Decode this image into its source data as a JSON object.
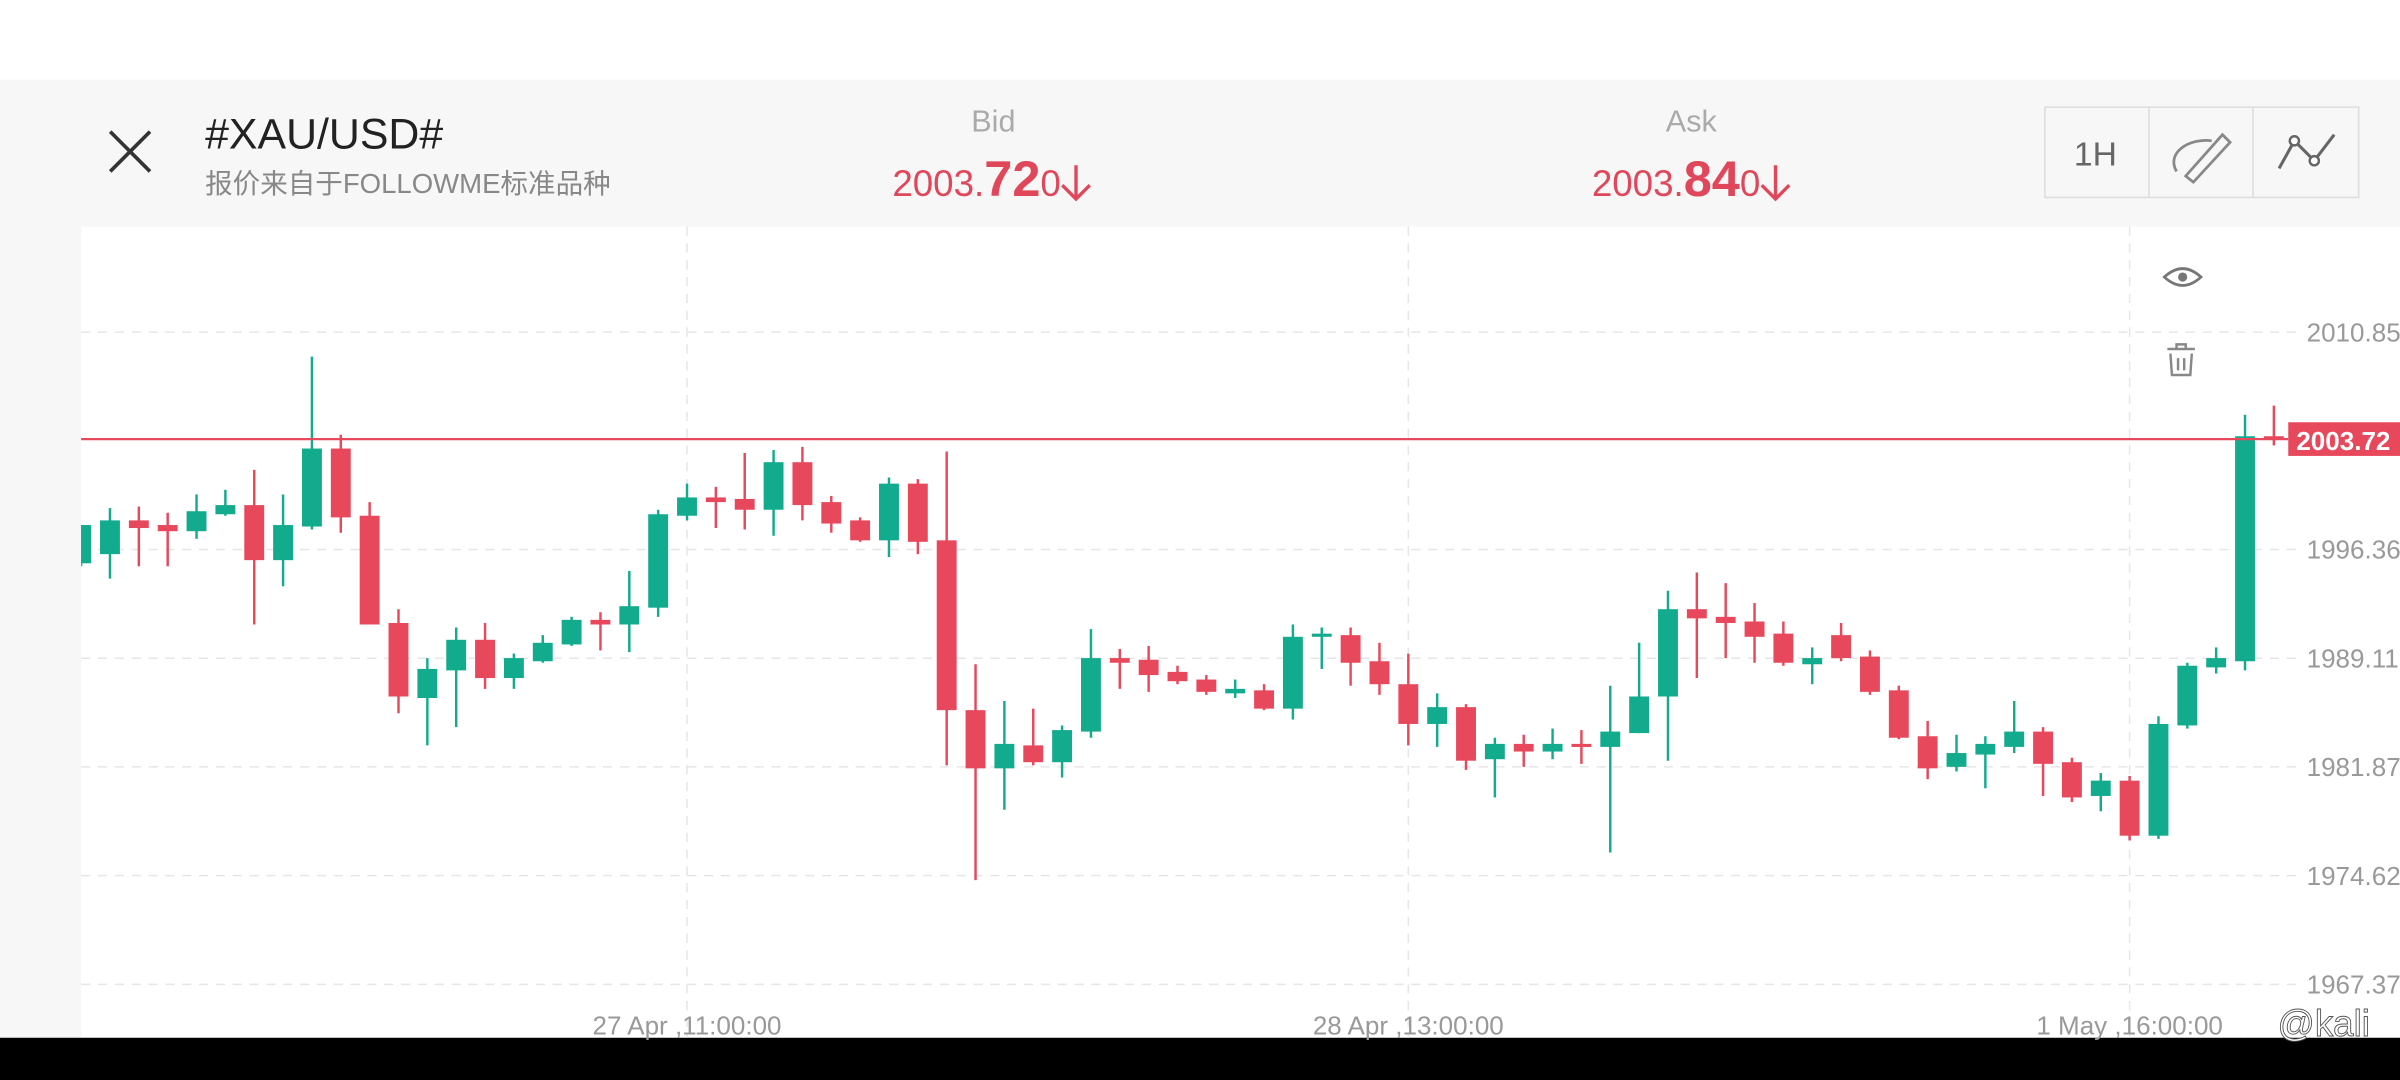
{
  "header": {
    "symbol": "#XAU/USD#",
    "source": "报价来自于FOLLOWME标准品种",
    "bid": {
      "label": "Bid",
      "parts": [
        "2003.",
        "72",
        "0"
      ]
    },
    "ask": {
      "label": "Ask",
      "parts": [
        "2003.",
        "84",
        "0"
      ]
    },
    "timeframe": "1H"
  },
  "chart_data": {
    "type": "candlestick",
    "categories": [
      null,
      null,
      null,
      null,
      null,
      null,
      null,
      null,
      null,
      null,
      null,
      null,
      null,
      null,
      null,
      null,
      null,
      null,
      null,
      null,
      null,
      "27 Apr ,11:00:00",
      null,
      null,
      null,
      null,
      null,
      null,
      null,
      null,
      null,
      null,
      null,
      null,
      null,
      null,
      null,
      null,
      null,
      null,
      null,
      null,
      null,
      null,
      null,
      null,
      "28 Apr ,13:00:00",
      null,
      null,
      null,
      null,
      null,
      null,
      null,
      null,
      null,
      null,
      null,
      null,
      null,
      null,
      null,
      null,
      null,
      null,
      null,
      null,
      null,
      null,
      null,
      null,
      "1 May ,16:00:00",
      null,
      null,
      null,
      null,
      null
    ],
    "open": [
      1995.44,
      1996.05,
      1998.3,
      1997.99,
      1997.58,
      1998.71,
      1999.32,
      1995.65,
      1997.89,
      2003.09,
      1998.61,
      1991.46,
      1986.46,
      1988.3,
      1990.34,
      1987.79,
      1988.91,
      1990.03,
      1991.67,
      1991.36,
      1992.48,
      1998.61,
      1999.83,
      1999.73,
      1999.01,
      2002.18,
      1999.52,
      1998.3,
      1996.97,
      2000.75,
      1996.97,
      1985.65,
      1981.77,
      1983.3,
      1982.18,
      1984.22,
      1989.12,
      1989.01,
      1988.2,
      1987.69,
      1986.77,
      1986.97,
      1985.75,
      1990.54,
      1990.65,
      1988.91,
      1987.38,
      1984.73,
      1985.85,
      1982.38,
      1983.4,
      1982.89,
      1983.4,
      1983.2,
      1984.12,
      1986.56,
      1992.38,
      1991.87,
      1991.56,
      1990.75,
      1988.71,
      1990.65,
      1989.22,
      1986.97,
      1983.91,
      1981.87,
      1982.69,
      1983.2,
      1984.22,
      1982.18,
      1979.93,
      1980.95,
      1977.28,
      1984.63,
      1988.5,
      1988.91,
      2003.91
    ],
    "high": [
      1997.99,
      1999.12,
      1999.22,
      1998.81,
      2000.03,
      2000.34,
      2001.67,
      2000.03,
      2009.22,
      2004.01,
      1999.52,
      1992.38,
      1989.12,
      1991.16,
      1991.46,
      1989.42,
      1990.65,
      1991.87,
      1992.18,
      1994.93,
      1999.01,
      2000.75,
      2000.54,
      2002.79,
      2002.99,
      2003.2,
      1999.93,
      1998.5,
      2001.16,
      2001.05,
      2002.89,
      1988.71,
      1986.26,
      1985.75,
      1984.63,
      1991.05,
      1989.73,
      1989.93,
      1988.61,
      1987.99,
      1987.69,
      1987.38,
      1991.36,
      1991.16,
      1991.16,
      1990.14,
      1989.42,
      1986.77,
      1986.05,
      1983.81,
      1984.01,
      1984.42,
      1984.32,
      1987.28,
      1990.14,
      1993.61,
      1994.83,
      1994.12,
      1992.79,
      1991.56,
      1989.83,
      1991.46,
      1989.63,
      1987.28,
      1984.93,
      1984.01,
      1983.91,
      1986.26,
      1984.52,
      1982.48,
      1981.46,
      1981.26,
      1985.24,
      1988.81,
      1989.83,
      2005.34,
      2005.95
    ],
    "low": [
      1995.24,
      1994.42,
      1995.24,
      1995.24,
      1997.07,
      1998.61,
      1991.36,
      1993.91,
      1997.69,
      1997.48,
      1991.36,
      1985.44,
      1983.3,
      1984.52,
      1987.07,
      1987.07,
      1988.81,
      1989.93,
      1989.63,
      1989.52,
      1991.87,
      1998.3,
      1997.79,
      1997.69,
      1997.28,
      1998.3,
      1997.48,
      1996.87,
      1995.85,
      1996.05,
      1981.97,
      1974.32,
      1979.01,
      1981.97,
      1981.16,
      1983.81,
      1987.07,
      1986.87,
      1987.38,
      1986.67,
      1986.46,
      1985.65,
      1985.03,
      1988.4,
      1987.28,
      1986.67,
      1983.3,
      1983.2,
      1981.67,
      1979.83,
      1981.87,
      1982.38,
      1982.07,
      1976.16,
      1984.12,
      1982.28,
      1987.79,
      1989.12,
      1988.81,
      1988.61,
      1987.38,
      1988.91,
      1986.67,
      1983.71,
      1981.05,
      1981.56,
      1980.44,
      1982.79,
      1979.93,
      1979.52,
      1978.91,
      1976.97,
      1977.07,
      1984.42,
      1988.09,
      1988.3,
      2003.3
    ],
    "close": [
      1997.99,
      1998.3,
      1997.79,
      1997.58,
      1998.91,
      1999.32,
      1995.65,
      1997.99,
      2003.09,
      1998.5,
      1991.36,
      1986.56,
      1988.4,
      1990.34,
      1987.79,
      1989.12,
      1990.14,
      1991.67,
      1991.36,
      1992.58,
      1998.71,
      1999.83,
      1999.52,
      1999.01,
      2002.18,
      1999.32,
      1998.09,
      1996.97,
      2000.75,
      1996.87,
      1985.65,
      1981.77,
      1983.4,
      1982.18,
      1984.32,
      1989.12,
      1988.81,
      1987.99,
      1987.58,
      1986.87,
      1987.07,
      1985.75,
      1990.54,
      1990.75,
      1988.81,
      1987.38,
      1984.73,
      1985.85,
      1982.28,
      1983.4,
      1982.89,
      1983.4,
      1983.2,
      1984.22,
      1986.56,
      1992.38,
      1991.77,
      1991.46,
      1990.54,
      1988.81,
      1989.12,
      1989.12,
      1986.87,
      1983.81,
      1981.77,
      1982.79,
      1983.4,
      1984.22,
      1982.07,
      1979.83,
      1980.95,
      1977.28,
      1984.73,
      1988.61,
      1989.12,
      2003.91,
      2003.72
    ],
    "up_color": "#12ab8e",
    "down_color": "#e8485c",
    "ylim": [
      1963.81,
      2017.89
    ],
    "yticks": [
      1967.37,
      1974.62,
      1981.87,
      1989.11,
      1996.36,
      2010.85
    ],
    "grid": true,
    "current_price": 2003.72,
    "current_price_color": "#e8485c"
  },
  "watermark": "@kali"
}
